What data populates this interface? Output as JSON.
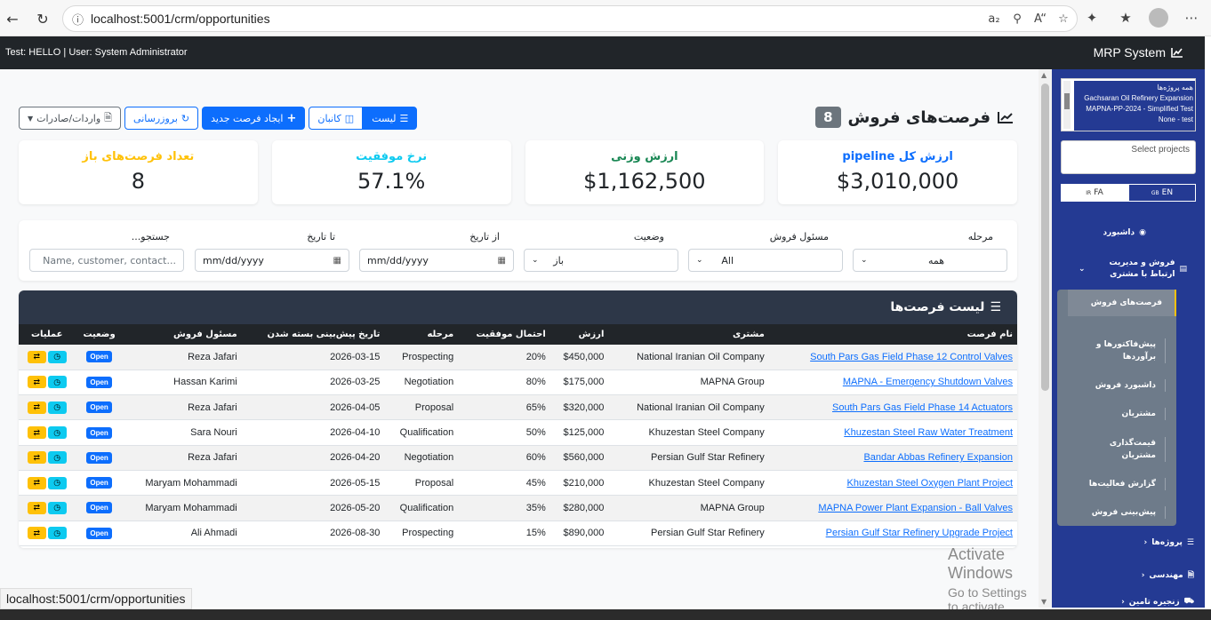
{
  "browser": {
    "url": "localhost:5001/crm/opportunities"
  },
  "topnav": {
    "user_info": "Test: HELLO | User: System Administrator",
    "brand": "MRP System"
  },
  "page": {
    "title": "فرصت‌های فروش",
    "count": "8",
    "buttons": {
      "list": "لیست",
      "kanban": "کانبان",
      "create": "ایجاد فرصت جدید",
      "refresh": "بروزرسانی",
      "import_export": "واردات/صادرات"
    }
  },
  "stats": [
    {
      "label": "ارزش کل pipeline",
      "value": "$3,010,000",
      "color": "#0d6efd"
    },
    {
      "label": "ارزش وزنی",
      "value": "$1,162,500",
      "color": "#198754"
    },
    {
      "label": "نرخ موفقیت",
      "value": "57.1%",
      "color": "#0dcaf0"
    },
    {
      "label": "تعداد فرصت‌های باز",
      "value": "8",
      "color": "#ffc107"
    }
  ],
  "filters": {
    "stage": {
      "label": "مرحله",
      "value": "همه"
    },
    "owner": {
      "label": "مسئول فروش",
      "value": "All"
    },
    "status": {
      "label": "وضعیت",
      "value": "باز"
    },
    "from_date": {
      "label": "از تاریخ",
      "value": "mm/dd/yyyy"
    },
    "to_date": {
      "label": "تا تاریخ",
      "value": "mm/dd/yyyy"
    },
    "search": {
      "label": "جستجو...",
      "placeholder": "Name, customer, contact..."
    }
  },
  "table": {
    "title": "لیست فرصت‌ها",
    "columns": [
      "نام فرصت",
      "مشتری",
      "ارزش",
      "احتمال موفقیت",
      "مرحله",
      "تاریخ پیش‌بینی بسته شدن",
      "مسئول فروش",
      "وضعیت",
      "عملیات"
    ],
    "rows": [
      {
        "name": "South Pars Gas Field Phase 12 Control Valves",
        "customer": "National Iranian Oil Company",
        "value": "$450,000",
        "prob": "20%",
        "stage": "Prospecting",
        "date": "2026-03-15",
        "owner": "Reza Jafari",
        "status": "Open"
      },
      {
        "name": "MAPNA - Emergency Shutdown Valves",
        "customer": "MAPNA Group",
        "value": "$175,000",
        "prob": "80%",
        "stage": "Negotiation",
        "date": "2026-03-25",
        "owner": "Hassan Karimi",
        "status": "Open"
      },
      {
        "name": "South Pars Gas Field Phase 14 Actuators",
        "customer": "National Iranian Oil Company",
        "value": "$320,000",
        "prob": "65%",
        "stage": "Proposal",
        "date": "2026-04-05",
        "owner": "Reza Jafari",
        "status": "Open"
      },
      {
        "name": "Khuzestan Steel Raw Water Treatment",
        "customer": "Khuzestan Steel Company",
        "value": "$125,000",
        "prob": "50%",
        "stage": "Qualification",
        "date": "2026-04-10",
        "owner": "Sara Nouri",
        "status": "Open"
      },
      {
        "name": "Bandar Abbas Refinery Expansion",
        "customer": "Persian Gulf Star Refinery",
        "value": "$560,000",
        "prob": "60%",
        "stage": "Negotiation",
        "date": "2026-04-20",
        "owner": "Reza Jafari",
        "status": "Open"
      },
      {
        "name": "Khuzestan Steel Oxygen Plant Project",
        "customer": "Khuzestan Steel Company",
        "value": "$210,000",
        "prob": "45%",
        "stage": "Proposal",
        "date": "2026-05-15",
        "owner": "Maryam Mohammadi",
        "status": "Open"
      },
      {
        "name": "MAPNA Power Plant Expansion - Ball Valves",
        "customer": "MAPNA Group",
        "value": "$280,000",
        "prob": "35%",
        "stage": "Qualification",
        "date": "2026-05-20",
        "owner": "Maryam Mohammadi",
        "status": "Open"
      },
      {
        "name": "Persian Gulf Star Refinery Upgrade Project",
        "customer": "Persian Gulf Star Refinery",
        "value": "$890,000",
        "prob": "15%",
        "stage": "Prospecting",
        "date": "2026-08-30",
        "owner": "Ali Ahmadi",
        "status": "Open"
      }
    ]
  },
  "sidebar": {
    "projects": [
      "همه پروژه‌ها",
      "Gachsaran Oil Refinery Expansion",
      "MAPNA-PP-2024 - Simplified Test",
      "None - test"
    ],
    "project_select_placeholder": "Select projects",
    "lang_fa": "FA",
    "lang_en": "EN",
    "lang_fa_flag": "IR",
    "lang_en_flag": "GB",
    "dashboard": "داشبورد",
    "sales_crm": "فروش و مدیریت ارتباط با مشتری",
    "sub_items": [
      "فرصت‌های فروش",
      "پیش‌فاکتورها و برآوردها",
      "داشبورد فروش",
      "مشتریان",
      "قیمت‌گذاری مشتریان",
      "گزارش فعالیت‌ها",
      "پیش‌بینی فروش"
    ],
    "projects_menu": "پروژه‌ها",
    "engineering": "مهندسی",
    "supply_chain": "زنجیره تامین"
  },
  "watermark": {
    "line1": "Activate Windows",
    "line2": "Go to Settings to activate Windows."
  },
  "status_bar": {
    "url": "localhost:5001/crm/opportunities"
  }
}
